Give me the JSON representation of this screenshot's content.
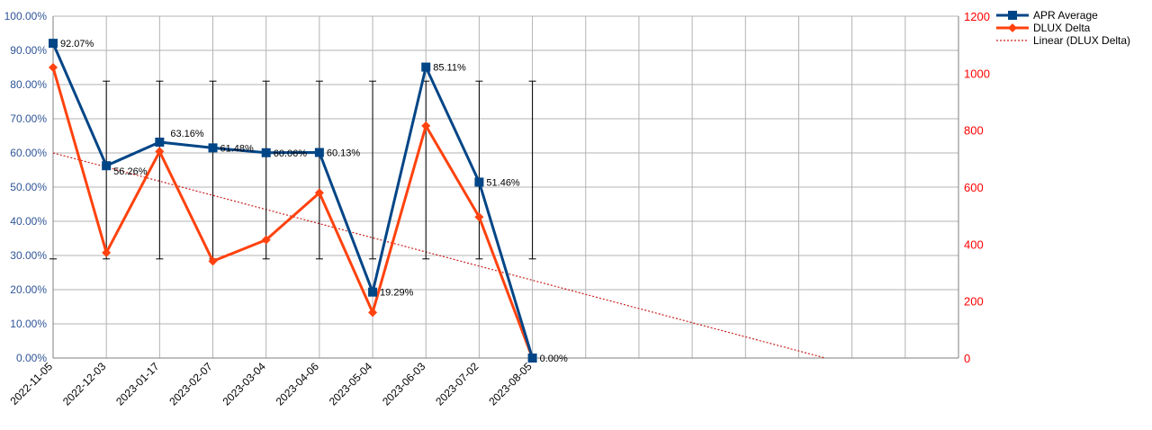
{
  "chart_data": {
    "type": "line",
    "x": [
      "2022-11-05",
      "2022-12-03",
      "2023-01-17",
      "2023-02-07",
      "2023-03-04",
      "2023-04-06",
      "2023-05-04",
      "2023-06-03",
      "2023-07-02",
      "2023-08-05"
    ],
    "x_extra_slots": 7,
    "y_left": {
      "min": 0,
      "max": 100,
      "step": 10,
      "tick_labels": [
        "0.00%",
        "10.00%",
        "20.00%",
        "30.00%",
        "40.00%",
        "50.00%",
        "60.00%",
        "70.00%",
        "80.00%",
        "90.00%",
        "100.00%"
      ],
      "color": "#2f5597"
    },
    "y_right": {
      "min": 0,
      "max": 1200,
      "step": 200,
      "tick_labels": [
        "0",
        "200",
        "400",
        "600",
        "800",
        "1000",
        "1200"
      ],
      "color": "#ff0000"
    },
    "grid": "horizontal and vertical",
    "legend_position": "right-top",
    "series": [
      {
        "name": "APR Average",
        "axis": "left",
        "color": "#004586",
        "marker": "square",
        "values": [
          92.07,
          56.26,
          63.16,
          61.48,
          60.06,
          60.13,
          19.29,
          85.11,
          51.46,
          0.0
        ],
        "labels": [
          "92.07%",
          "56.26%",
          "63.16%",
          "61.48%",
          "60.06%",
          "60.13%",
          "19.29%",
          "85.11%",
          "51.46%",
          "0.00%"
        ],
        "error_bars": {
          "low": 29,
          "high": 81
        }
      },
      {
        "name": "DLUX Delta",
        "axis": "right",
        "color": "#ff420e",
        "marker": "diamond",
        "values": [
          1020,
          370,
          725,
          340,
          415,
          580,
          160,
          815,
          495,
          0
        ]
      },
      {
        "name": "Linear (DLUX Delta)",
        "axis": "right",
        "color": "#c9211e",
        "style": "dotted",
        "trend": {
          "start": 720,
          "end": 0,
          "end_slot": 14.5
        }
      }
    ]
  }
}
